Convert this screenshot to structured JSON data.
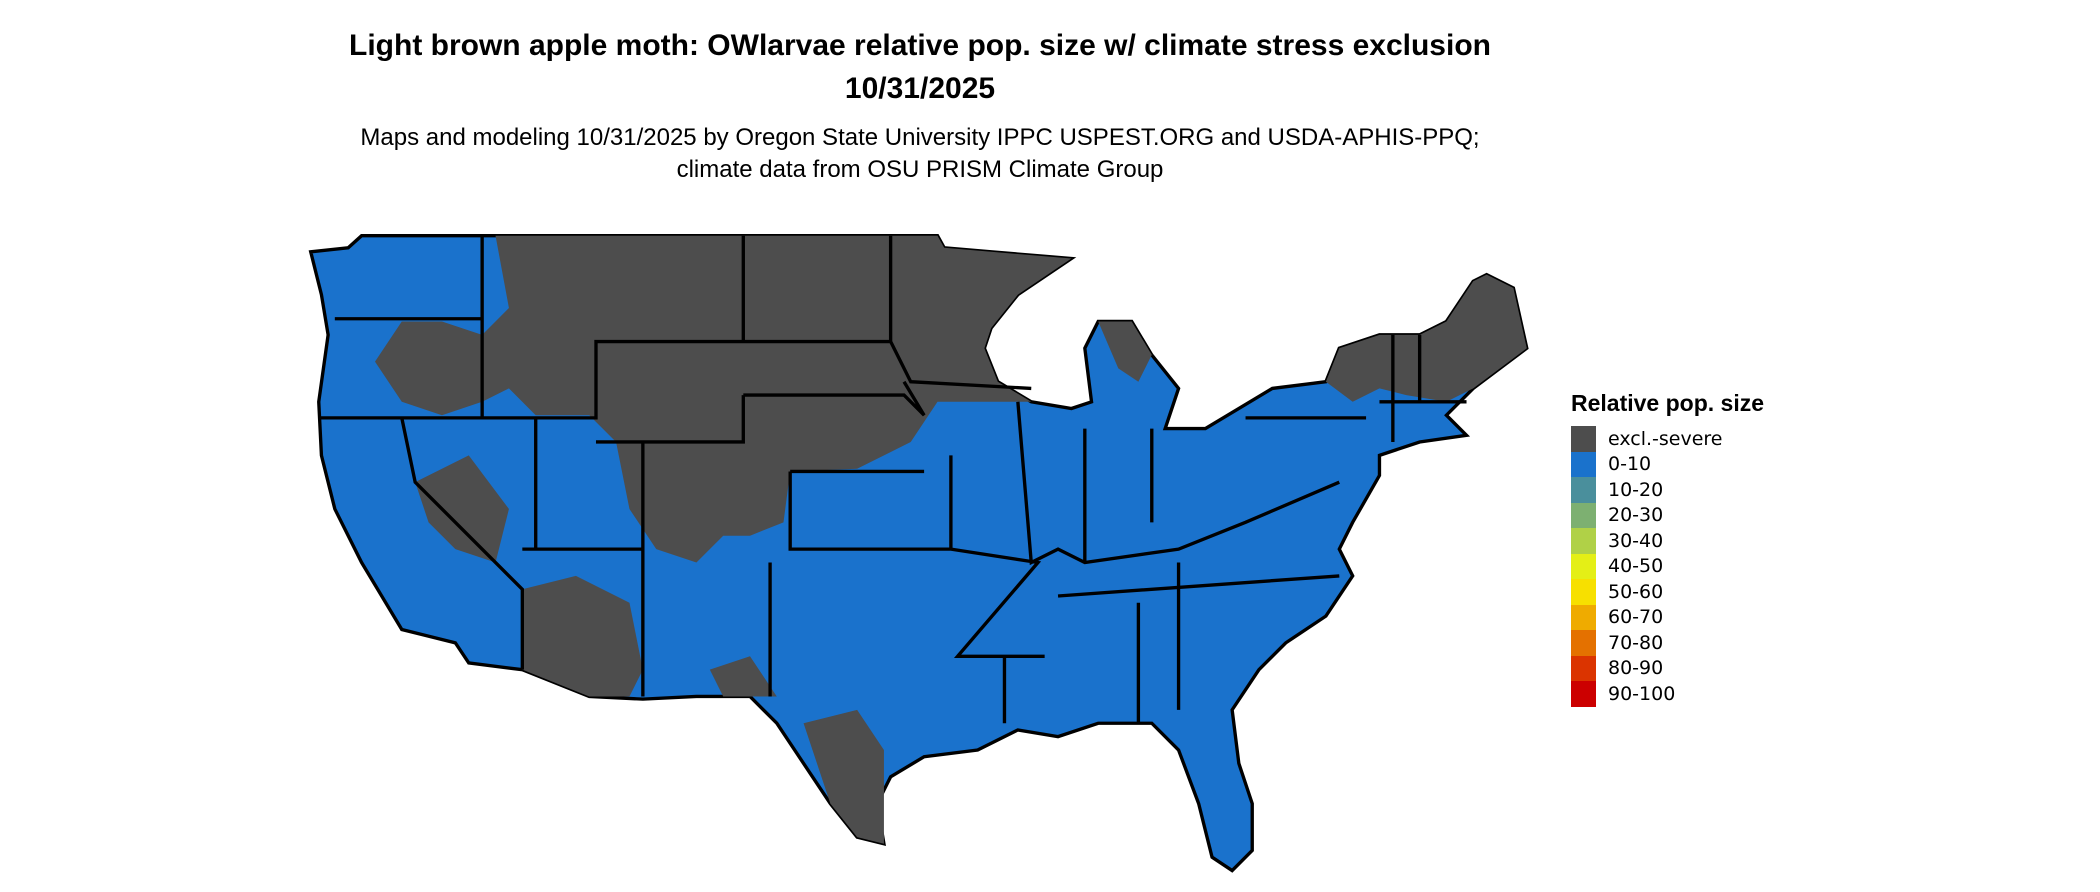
{
  "title": "Light brown apple moth: OWlarvae relative pop. size w/ climate stress exclusion 10/31/2025",
  "subtitle": "Maps and modeling 10/31/2025 by Oregon State University IPPC USPEST.ORG and USDA-APHIS-PPQ; climate data from OSU PRISM Climate Group",
  "chart_data": {
    "type": "map",
    "region": "Contiguous United States",
    "legend": {
      "title": "Relative pop. size",
      "placement": "right",
      "items": [
        {
          "label": "excl.-severe",
          "color": "#4d4d4d"
        },
        {
          "label": "0-10",
          "color": "#1a72cc"
        },
        {
          "label": "10-20",
          "color": "#4a8f9c"
        },
        {
          "label": "20-30",
          "color": "#7db071"
        },
        {
          "label": "30-40",
          "color": "#b0d147"
        },
        {
          "label": "40-50",
          "color": "#e4ef16"
        },
        {
          "label": "50-60",
          "color": "#f7e000"
        },
        {
          "label": "60-70",
          "color": "#efab00"
        },
        {
          "label": "70-80",
          "color": "#e47100"
        },
        {
          "label": "80-90",
          "color": "#db3400"
        },
        {
          "label": "90-100",
          "color": "#cc0000"
        }
      ]
    },
    "dominant_categories": [
      "0-10",
      "excl.-severe"
    ]
  }
}
